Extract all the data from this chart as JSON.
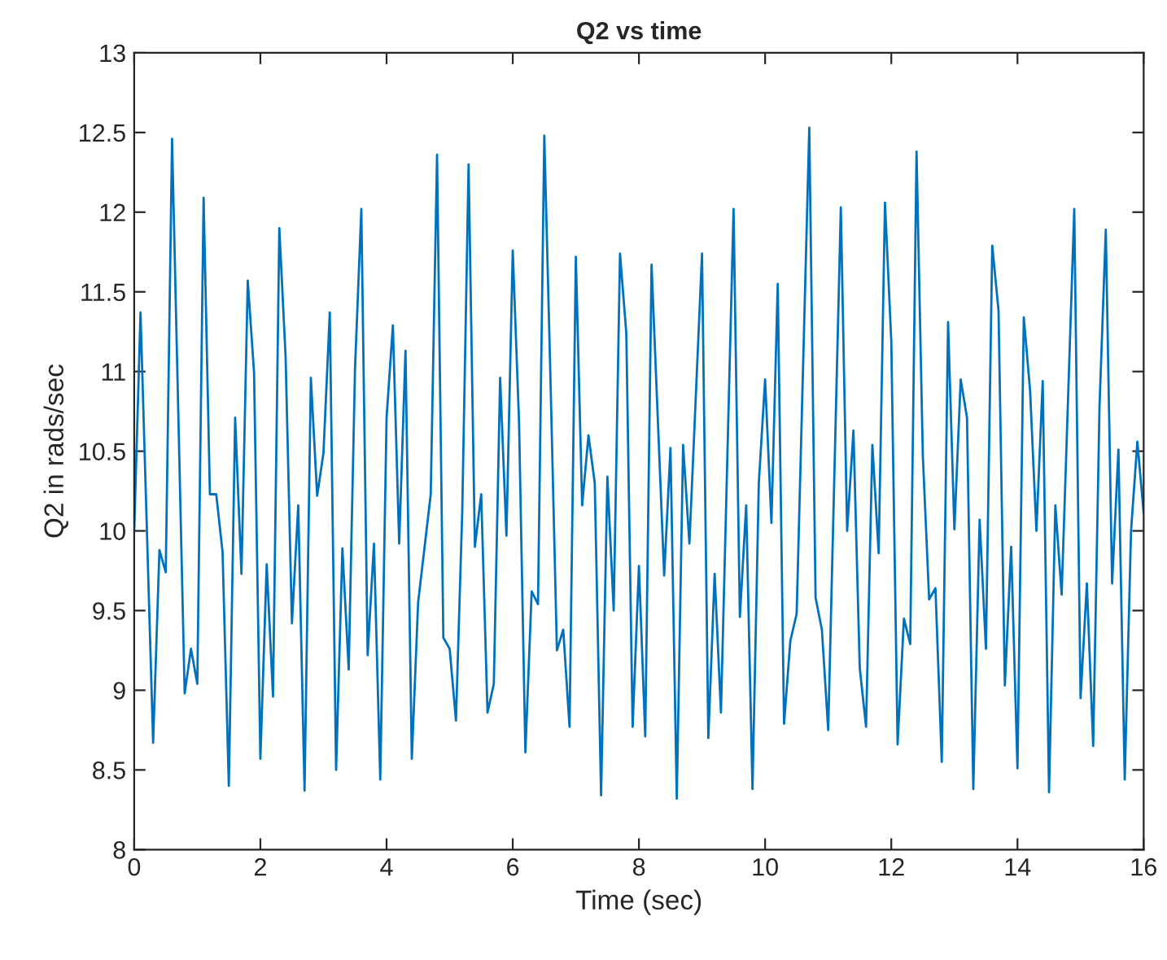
{
  "chart_data": {
    "type": "line",
    "title": "Q2 vs time",
    "xlabel": "Time (sec)",
    "ylabel": "Q2 in rads/sec",
    "xlim": [
      0,
      16
    ],
    "xticks": [
      0,
      2,
      4,
      6,
      8,
      10,
      12,
      14,
      16
    ],
    "ylim": [
      8,
      13
    ],
    "yticks": [
      8,
      8.5,
      9,
      9.5,
      10,
      10.5,
      11,
      11.5,
      12,
      12.5,
      13
    ],
    "grid": false,
    "legend": false,
    "series": [
      {
        "color": "#0072bd",
        "line_style": "solid",
        "x": [
          0,
          0.1,
          0.3,
          0.4,
          0.5,
          0.6,
          0.8,
          0.9,
          1.0,
          1.1,
          1.2,
          1.3,
          1.4,
          1.5,
          1.6,
          1.7,
          1.8,
          1.9,
          2.0,
          2.1,
          2.2,
          2.3,
          2.4,
          2.5,
          2.6,
          2.7,
          2.8,
          2.9,
          3.0,
          3.1,
          3.2,
          3.3,
          3.4,
          3.5,
          3.6,
          3.7,
          3.8,
          3.9,
          4.0,
          4.1,
          4.2,
          4.3,
          4.4,
          4.5,
          4.6,
          4.7,
          4.8,
          4.9,
          5.0,
          5.1,
          5.2,
          5.3,
          5.4,
          5.5,
          5.6,
          5.7,
          5.8,
          5.9,
          6.0,
          6.1,
          6.2,
          6.3,
          6.4,
          6.5,
          6.6,
          6.7,
          6.8,
          6.9,
          7.0,
          7.1,
          7.2,
          7.3,
          7.4,
          7.5,
          7.6,
          7.7,
          7.8,
          7.9,
          8.0,
          8.1,
          8.2,
          8.4,
          8.5,
          8.6,
          8.7,
          8.8,
          9.0,
          9.1,
          9.2,
          9.3,
          9.5,
          9.6,
          9.7,
          9.8,
          9.9,
          10.0,
          10.1,
          10.2,
          10.3,
          10.4,
          10.5,
          10.7,
          10.8,
          10.9,
          11.0,
          11.2,
          11.3,
          11.4,
          11.5,
          11.6,
          11.7,
          11.8,
          11.9,
          12.0,
          12.1,
          12.2,
          12.3,
          12.4,
          12.5,
          12.6,
          12.7,
          12.8,
          12.9,
          13.0,
          13.1,
          13.2,
          13.3,
          13.4,
          13.5,
          13.6,
          13.7,
          13.8,
          13.9,
          14.0,
          14.1,
          14.2,
          14.3,
          14.4,
          14.5,
          14.6,
          14.7,
          14.9,
          15.0,
          15.1,
          15.2,
          15.3,
          15.4,
          15.5,
          15.6,
          15.7,
          15.8,
          15.9,
          16.0
        ],
        "values": [
          10.0,
          11.37,
          8.67,
          9.88,
          9.74,
          12.46,
          8.98,
          9.26,
          9.04,
          12.09,
          10.23,
          10.23,
          9.87,
          8.4,
          10.71,
          9.73,
          11.57,
          10.99,
          8.57,
          9.79,
          8.96,
          11.9,
          11.09,
          9.42,
          10.16,
          8.37,
          10.96,
          10.22,
          10.49,
          11.37,
          8.5,
          9.89,
          9.13,
          11.02,
          12.02,
          9.22,
          9.92,
          8.44,
          10.71,
          11.29,
          9.92,
          11.13,
          8.57,
          9.55,
          9.89,
          10.23,
          12.36,
          9.33,
          9.26,
          8.81,
          10.13,
          12.3,
          9.9,
          10.23,
          8.86,
          9.04,
          10.96,
          9.97,
          11.76,
          10.68,
          8.61,
          9.62,
          9.54,
          12.48,
          10.92,
          9.25,
          9.38,
          8.77,
          11.72,
          10.16,
          10.6,
          10.3,
          8.34,
          10.34,
          9.5,
          11.74,
          11.24,
          8.77,
          9.78,
          8.71,
          11.67,
          9.72,
          10.52,
          8.32,
          10.54,
          9.92,
          11.74,
          8.7,
          9.73,
          8.86,
          12.02,
          9.46,
          10.16,
          8.38,
          10.3,
          10.95,
          10.05,
          11.55,
          8.79,
          9.31,
          9.48,
          12.53,
          9.58,
          9.38,
          8.75,
          12.03,
          10.0,
          10.63,
          9.14,
          8.77,
          10.54,
          9.86,
          12.06,
          11.19,
          8.66,
          9.45,
          9.29,
          12.38,
          10.47,
          9.57,
          9.64,
          8.55,
          11.31,
          10.01,
          10.95,
          10.71,
          8.38,
          10.07,
          9.26,
          11.79,
          11.38,
          9.03,
          9.9,
          8.51,
          11.34,
          10.88,
          10.0,
          10.94,
          8.36,
          10.16,
          9.6,
          12.02,
          8.95,
          9.67,
          8.65,
          10.78,
          11.89,
          9.67,
          10.51,
          8.44,
          10.0,
          10.56,
          10.11
        ]
      }
    ]
  }
}
